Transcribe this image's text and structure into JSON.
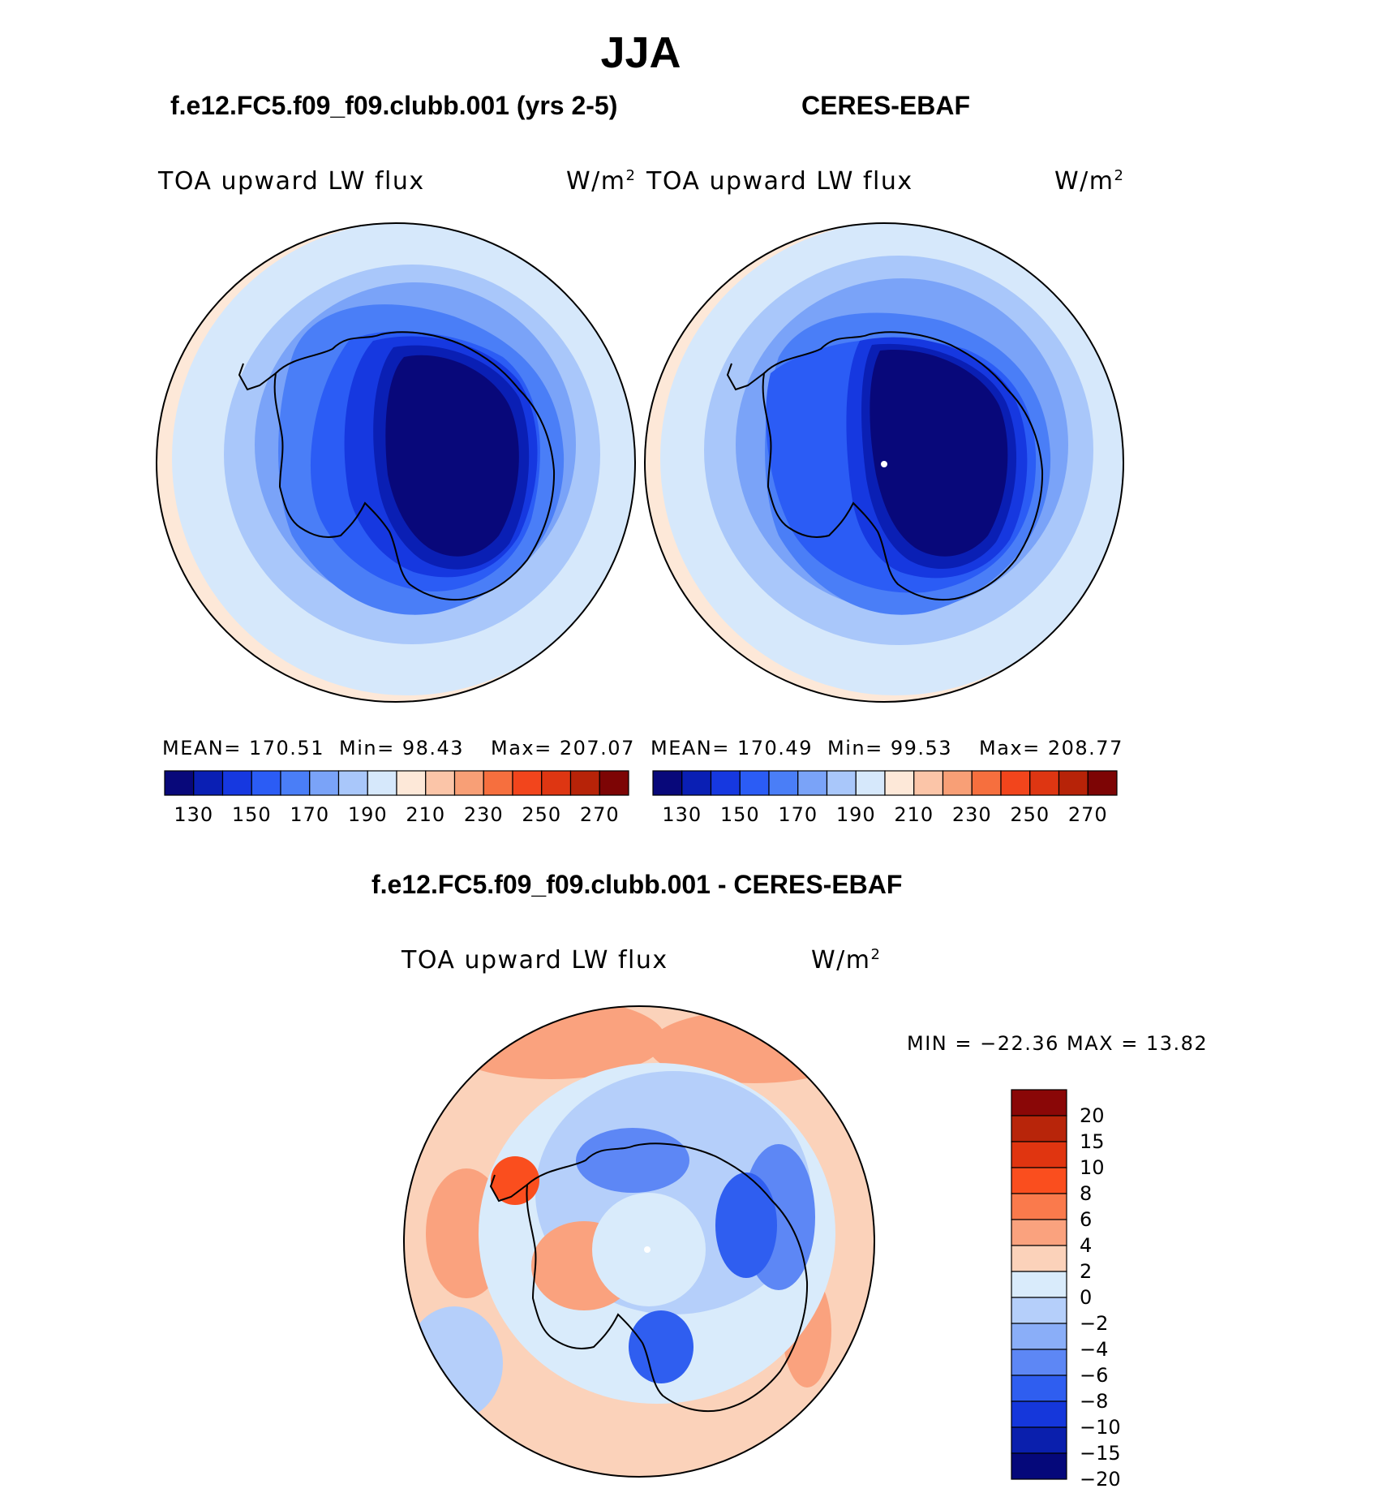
{
  "figure": {
    "title": "JJA",
    "panels": [
      {
        "case_title": "f.e12.FC5.f09_f09.clubb.001 (yrs 2-5)",
        "variable": "TOA upward LW flux",
        "units": "W/m",
        "units_exp": "2",
        "stats": {
          "mean": "MEAN= 170.51",
          "min": "Min=  98.43",
          "max": "Max= 207.07"
        }
      },
      {
        "case_title": "CERES-EBAF",
        "variable": "TOA upward LW flux",
        "units": "W/m",
        "units_exp": "2",
        "stats": {
          "mean": "MEAN= 170.49",
          "min": "Min=  99.53",
          "max": "Max= 208.77"
        }
      },
      {
        "case_title": "f.e12.FC5.f09_f09.clubb.001 - CERES-EBAF",
        "variable": "TOA upward LW flux",
        "units": "W/m",
        "units_exp": "2",
        "stats": {
          "minmax": "MIN = −22.36 MAX =   13.82"
        }
      }
    ]
  },
  "chart_data": [
    {
      "type": "heatmap",
      "projection": "south-polar-stereographic",
      "title": "f.e12.FC5.f09_f09.clubb.001 (yrs 2-5)",
      "variable": "TOA upward LW flux",
      "units": "W/m2",
      "mean": 170.51,
      "min": 98.43,
      "max": 207.07,
      "colorbar_levels": [
        130,
        140,
        150,
        160,
        170,
        180,
        190,
        200,
        210,
        220,
        230,
        240,
        250,
        260,
        270
      ],
      "colorbar_labels": [
        "130",
        "150",
        "170",
        "190",
        "210",
        "230",
        "250",
        "270"
      ],
      "colorbar_colors": [
        "#08087a",
        "#0a1fb4",
        "#1638e0",
        "#2b5cf5",
        "#4a7ef7",
        "#7aa3f8",
        "#a9c7fa",
        "#d6e8fb",
        "#fde8d8",
        "#fbc5a8",
        "#f89f76",
        "#f66f3e",
        "#f2451c",
        "#de3612",
        "#b72308",
        "#7d0505"
      ],
      "colorbar_orientation": "horizontal"
    },
    {
      "type": "heatmap",
      "projection": "south-polar-stereographic",
      "title": "CERES-EBAF",
      "variable": "TOA upward LW flux",
      "units": "W/m2",
      "mean": 170.49,
      "min": 99.53,
      "max": 208.77,
      "colorbar_levels": [
        130,
        140,
        150,
        160,
        170,
        180,
        190,
        200,
        210,
        220,
        230,
        240,
        250,
        260,
        270
      ],
      "colorbar_labels": [
        "130",
        "150",
        "170",
        "190",
        "210",
        "230",
        "250",
        "270"
      ],
      "colorbar_colors": [
        "#08087a",
        "#0a1fb4",
        "#1638e0",
        "#2b5cf5",
        "#4a7ef7",
        "#7aa3f8",
        "#a9c7fa",
        "#d6e8fb",
        "#fde8d8",
        "#fbc5a8",
        "#f89f76",
        "#f66f3e",
        "#f2451c",
        "#de3612",
        "#b72308",
        "#7d0505"
      ],
      "colorbar_orientation": "horizontal"
    },
    {
      "type": "heatmap",
      "projection": "south-polar-stereographic",
      "title": "f.e12.FC5.f09_f09.clubb.001 - CERES-EBAF",
      "variable": "TOA upward LW flux",
      "units": "W/m2",
      "min": -22.36,
      "max": 13.82,
      "colorbar_levels": [
        20,
        15,
        10,
        8,
        6,
        4,
        2,
        0,
        -2,
        -4,
        -6,
        -8,
        -10,
        -15,
        -20
      ],
      "colorbar_labels": [
        "20",
        "15",
        "10",
        "8",
        "6",
        "4",
        "2",
        "0",
        "−2",
        "−4",
        "−6",
        "−8",
        "−10",
        "−15",
        "−20"
      ],
      "colorbar_colors": [
        "#8a0707",
        "#b8250a",
        "#e03510",
        "#fa4e1e",
        "#fa7a4c",
        "#faa27e",
        "#fbd2ba",
        "#d9ebfb",
        "#b5cffa",
        "#8aaef8",
        "#5d87f5",
        "#2f5ef0",
        "#1537db",
        "#0a1fad",
        "#05087a"
      ],
      "colorbar_orientation": "vertical"
    }
  ]
}
